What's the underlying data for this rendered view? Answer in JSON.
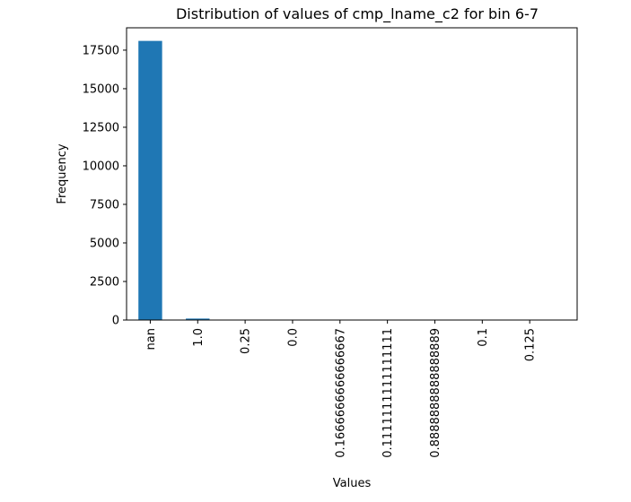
{
  "chart_data": {
    "type": "bar",
    "title": "Distribution of values of cmp_lname_c2 for bin 6-7",
    "xlabel": "Values",
    "ylabel": "Frequency",
    "categories": [
      "nan",
      "1.0",
      "0.25",
      "0.0",
      "0.1666666666666667",
      "0.1111111111111111",
      "0.8888888888888889",
      "0.1",
      "0.125"
    ],
    "values": [
      18100,
      95,
      8,
      6,
      4,
      3,
      3,
      2,
      2
    ],
    "ylim": [
      0,
      18950
    ],
    "yticks": [
      0,
      2500,
      5000,
      7500,
      10000,
      12500,
      15000,
      17500
    ],
    "ytick_labels": [
      "0",
      "2500",
      "5000",
      "7500",
      "10000",
      "12500",
      "15000",
      "17500"
    ],
    "bar_color": "#1f77b4",
    "grid": false,
    "legend": "none"
  }
}
